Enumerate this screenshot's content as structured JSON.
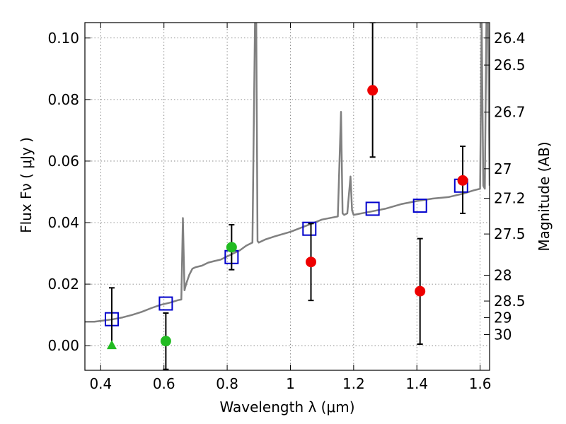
{
  "chart_data": {
    "type": "scatter",
    "title": "",
    "xlabel": "Wavelength  λ (μm)",
    "ylabel": "Flux  Fν  ( μJy )",
    "y2label": "Magnitude (AB)",
    "xlim": [
      0.35,
      1.63
    ],
    "ylim": [
      -0.008,
      0.105
    ],
    "x_ticks": [
      0.4,
      0.6,
      0.8,
      1.0,
      1.2,
      1.4,
      1.6
    ],
    "x_tick_labels": [
      "0.4",
      "0.6",
      "0.8",
      "1",
      "1.2",
      "1.4",
      "1.6"
    ],
    "y_ticks": [
      0.0,
      0.02,
      0.04,
      0.06,
      0.08,
      0.1
    ],
    "y_tick_labels": [
      "0.00",
      "0.02",
      "0.04",
      "0.06",
      "0.08",
      "0.10"
    ],
    "mag_ticks": [
      {
        "label": "26.4",
        "flux": 0.1
      },
      {
        "label": "26.5",
        "flux": 0.0912
      },
      {
        "label": "26.7",
        "flux": 0.0759
      },
      {
        "label": "27",
        "flux": 0.0575
      },
      {
        "label": "27.2",
        "flux": 0.0479
      },
      {
        "label": "27.5",
        "flux": 0.0363
      },
      {
        "label": "28",
        "flux": 0.0229
      },
      {
        "label": "28.5",
        "flux": 0.0145
      },
      {
        "label": "29",
        "flux": 0.0091
      },
      {
        "label": "30",
        "flux": 0.0036
      }
    ],
    "grid": true,
    "series": [
      {
        "name": "template spectrum",
        "kind": "line",
        "color": "#808080",
        "x": [
          0.35,
          0.38,
          0.41,
          0.44,
          0.47,
          0.5,
          0.53,
          0.56,
          0.59,
          0.62,
          0.645,
          0.655,
          0.66,
          0.665,
          0.67,
          0.68,
          0.69,
          0.7,
          0.72,
          0.74,
          0.76,
          0.78,
          0.8,
          0.82,
          0.84,
          0.86,
          0.88,
          0.888,
          0.892,
          0.896,
          0.9,
          0.92,
          0.95,
          1.0,
          1.05,
          1.1,
          1.15,
          1.16,
          1.165,
          1.17,
          1.18,
          1.19,
          1.195,
          1.2,
          1.25,
          1.3,
          1.35,
          1.4,
          1.45,
          1.5,
          1.55,
          1.58,
          1.6,
          1.605,
          1.61,
          1.615,
          1.62,
          1.625,
          1.63
        ],
        "y": [
          0.0078,
          0.0078,
          0.0082,
          0.0086,
          0.0092,
          0.01,
          0.011,
          0.0122,
          0.0133,
          0.014,
          0.0148,
          0.015,
          0.0415,
          0.018,
          0.02,
          0.023,
          0.025,
          0.0255,
          0.026,
          0.027,
          0.0275,
          0.028,
          0.029,
          0.03,
          0.031,
          0.0325,
          0.0335,
          0.105,
          0.105,
          0.034,
          0.0335,
          0.0345,
          0.0355,
          0.037,
          0.039,
          0.041,
          0.042,
          0.076,
          0.043,
          0.0425,
          0.043,
          0.055,
          0.044,
          0.0425,
          0.0435,
          0.0445,
          0.046,
          0.047,
          0.0478,
          0.0483,
          0.0495,
          0.0505,
          0.051,
          0.105,
          0.052,
          0.051,
          0.105,
          0.105,
          0.052
        ]
      },
      {
        "name": "model bands",
        "kind": "open-square",
        "color": "#0000cc",
        "x": [
          0.435,
          0.606,
          0.814,
          1.06,
          1.26,
          1.41,
          1.54
        ],
        "y": [
          0.0086,
          0.0137,
          0.0288,
          0.038,
          0.0445,
          0.0455,
          0.052
        ]
      },
      {
        "name": "red detections",
        "kind": "filled-circle",
        "color": "#ee0000",
        "x": [
          1.065,
          1.26,
          1.41,
          1.545
        ],
        "y": [
          0.0272,
          0.083,
          0.0177,
          0.0537
        ],
        "err_low": [
          0.0147,
          0.0613,
          0.0005,
          0.043
        ],
        "err_high": [
          0.0397,
          0.105,
          0.0348,
          0.0648
        ]
      },
      {
        "name": "green detections",
        "kind": "filled-circle",
        "color": "#22bb22",
        "x": [
          0.606,
          0.814
        ],
        "y": [
          0.0015,
          0.032
        ],
        "err_low": [
          -0.0077,
          0.0247
        ],
        "err_high": [
          0.0106,
          0.0393
        ]
      },
      {
        "name": "green upper limit",
        "kind": "triangle",
        "color": "#22bb22",
        "x": [
          0.435
        ],
        "y": [
          0.0
        ],
        "err_low": [
          -0.0005
        ],
        "err_high": [
          0.0188
        ]
      }
    ]
  }
}
